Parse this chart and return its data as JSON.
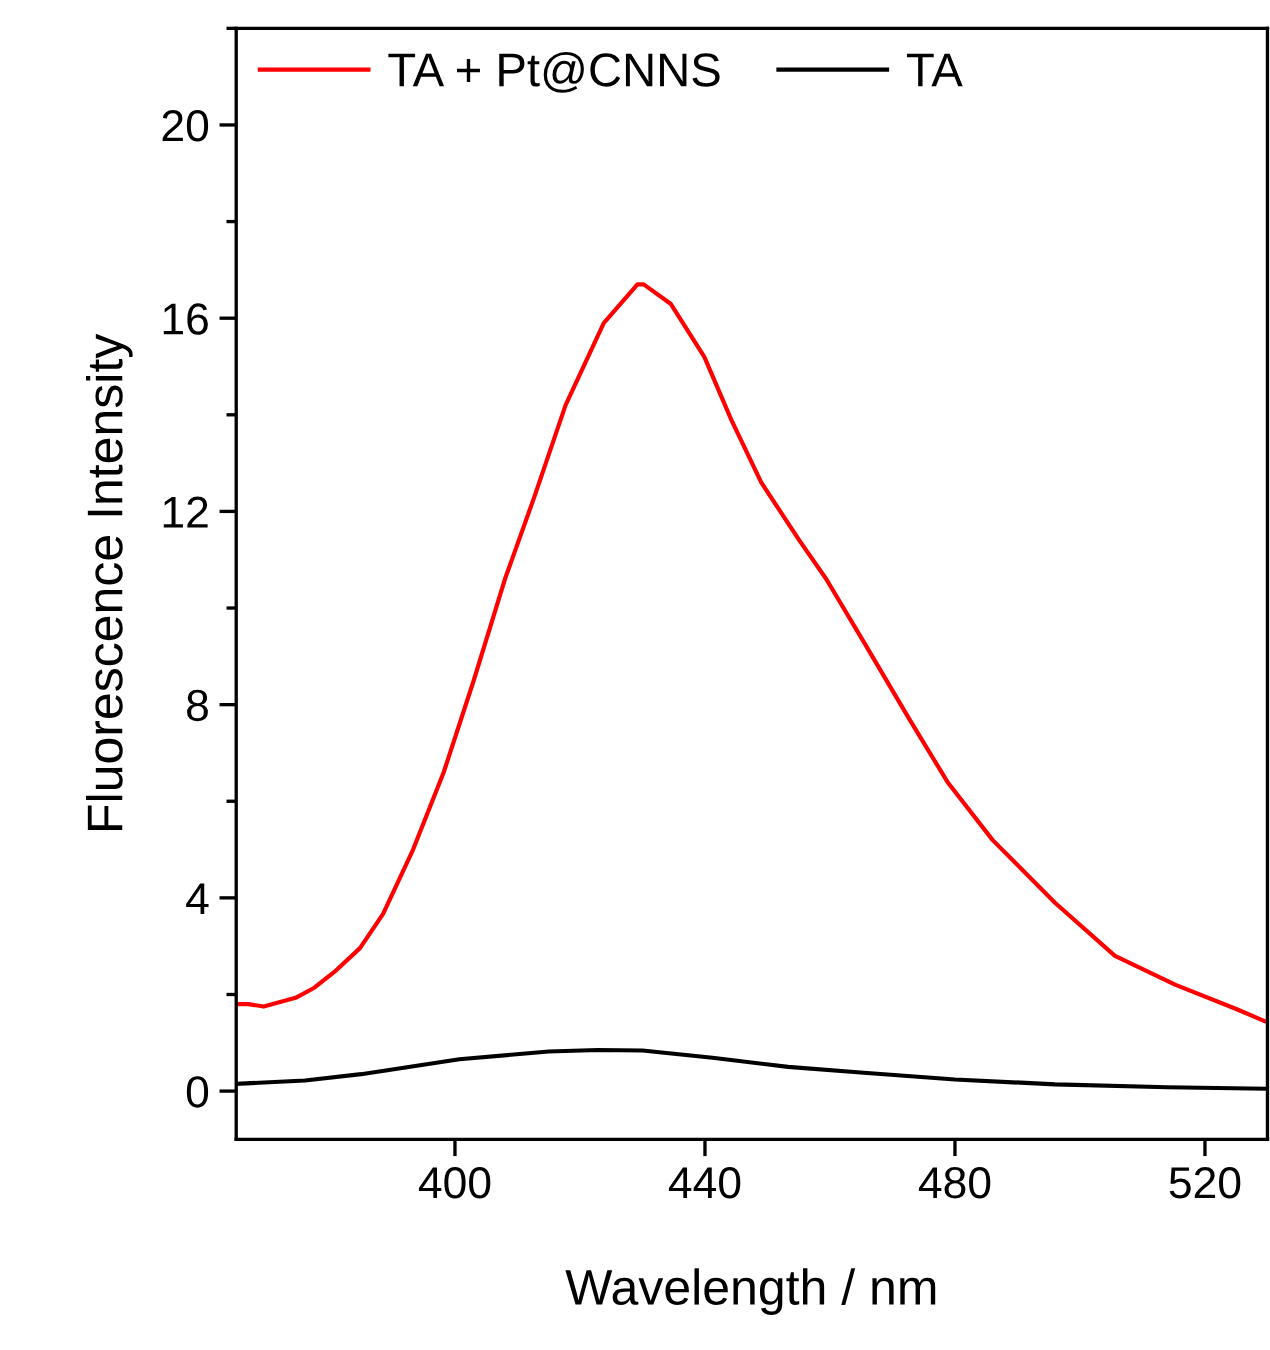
{
  "chart_data": {
    "type": "line",
    "xlabel": "Wavelength / nm",
    "ylabel": "Fluorescence Intensity",
    "xlim": [
      365,
      530
    ],
    "xticks": [
      400,
      440,
      480,
      520
    ],
    "ylim": [
      -1,
      22
    ],
    "yticks": [
      0,
      4,
      8,
      12,
      16,
      20
    ],
    "grid": false,
    "legend": "top left",
    "marker": "none",
    "line_style": "solid",
    "series": [
      {
        "name": "TA + Pt@CNNS",
        "color": "#ff0000",
        "x": [
          365,
          367,
          369.4,
          374.5,
          377.5,
          381,
          384.8,
          388.5,
          393.3,
          398.2,
          403,
          408,
          412.7,
          417.7,
          423.8,
          429.2,
          430.2,
          434.5,
          439.9,
          444.2,
          449,
          455.1,
          459.4,
          465.4,
          472.7,
          478.8,
          486,
          496,
          505.6,
          515.3,
          525,
          529.5
        ],
        "values": [
          1.8,
          1.8,
          1.75,
          1.93,
          2.14,
          2.5,
          2.96,
          3.67,
          5.0,
          6.6,
          8.5,
          10.6,
          12.3,
          14.2,
          15.9,
          16.7,
          16.7,
          16.3,
          15.2,
          13.9,
          12.6,
          11.4,
          10.6,
          9.3,
          7.7,
          6.4,
          5.2,
          3.9,
          2.8,
          2.2,
          1.7,
          1.45
        ]
      },
      {
        "name": "TA",
        "color": "#000000",
        "x": [
          365,
          376,
          385,
          400.7,
          415,
          422.9,
          430,
          441.2,
          453.3,
          465.4,
          480,
          496,
          514,
          529.5
        ],
        "values": [
          0.15,
          0.22,
          0.35,
          0.66,
          0.82,
          0.85,
          0.84,
          0.69,
          0.5,
          0.38,
          0.24,
          0.14,
          0.08,
          0.05
        ]
      }
    ]
  }
}
